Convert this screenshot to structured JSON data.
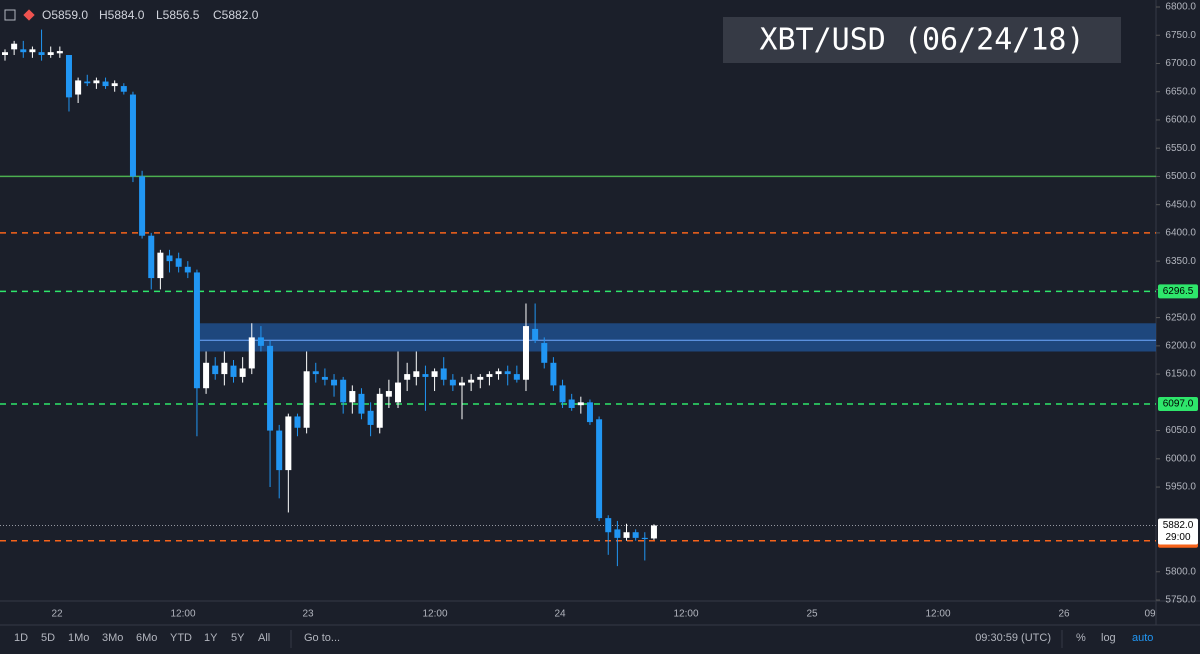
{
  "chart_data": {
    "type": "candlestick",
    "title": "XBT/USD (06/24/18)",
    "ohlc_labels": [
      "O5859.0",
      "H5884.0",
      "L5856.5",
      "C5882.0"
    ],
    "up_color": "#ffffff",
    "down_color": "#2196f3",
    "open": [
      6715,
      6725,
      6725,
      6720,
      6720,
      6715,
      6718,
      6715,
      6645,
      6668,
      6665,
      6668,
      6660,
      6660,
      6645,
      6500,
      6395,
      6320,
      6360,
      6355,
      6340,
      6330,
      6125,
      6165,
      6150,
      6165,
      6145,
      6160,
      6215,
      6200,
      6050,
      5980,
      6075,
      6055,
      6155,
      6145,
      6140,
      6140,
      6100,
      6115,
      6085,
      6055,
      6110,
      6100,
      6140,
      6145,
      6150,
      6145,
      6160,
      6140,
      6130,
      6135,
      6140,
      6145,
      6150,
      6155,
      6150,
      6140,
      6230,
      6205,
      6170,
      6130,
      6105,
      6095,
      6100,
      6070,
      5895,
      5875,
      5860,
      5870,
      5860,
      5859
    ],
    "high": [
      6725,
      6740,
      6740,
      6730,
      6760,
      6730,
      6730,
      6715,
      6675,
      6680,
      6675,
      6675,
      6670,
      6665,
      6650,
      6510,
      6400,
      6370,
      6370,
      6365,
      6350,
      6335,
      6190,
      6180,
      6190,
      6175,
      6180,
      6240,
      6235,
      6210,
      6060,
      6080,
      6080,
      6190,
      6170,
      6160,
      6150,
      6145,
      6130,
      6125,
      6100,
      6125,
      6140,
      6190,
      6170,
      6190,
      6165,
      6160,
      6180,
      6150,
      6145,
      6150,
      6150,
      6155,
      6160,
      6165,
      6165,
      6275,
      6275,
      6215,
      6180,
      6140,
      6115,
      6110,
      6105,
      6075,
      5900,
      5890,
      5885,
      5875,
      5870,
      5884
    ],
    "low": [
      6705,
      6715,
      6710,
      6710,
      6705,
      6710,
      6710,
      6615,
      6630,
      6660,
      6655,
      6655,
      6650,
      6645,
      6490,
      6390,
      6300,
      6300,
      6330,
      6330,
      6320,
      6040,
      6115,
      6140,
      6130,
      6135,
      6135,
      6150,
      6190,
      5950,
      5930,
      5905,
      6040,
      6045,
      6135,
      6130,
      6110,
      6080,
      6080,
      6070,
      6040,
      6045,
      6090,
      6090,
      6120,
      6130,
      6085,
      6120,
      6130,
      6120,
      6070,
      6120,
      6125,
      6130,
      6140,
      6130,
      6135,
      6120,
      6205,
      6160,
      6120,
      6090,
      6085,
      6080,
      6060,
      5890,
      5830,
      5810,
      5855,
      5855,
      5820,
      5856.5
    ],
    "close": [
      6720,
      6735,
      6720,
      6725,
      6715,
      6720,
      6722,
      6640,
      6670,
      6665,
      6670,
      6660,
      6665,
      6650,
      6500,
      6395,
      6320,
      6365,
      6350,
      6340,
      6330,
      6125,
      6170,
      6150,
      6170,
      6145,
      6160,
      6215,
      6200,
      6050,
      5980,
      6075,
      6055,
      6155,
      6150,
      6140,
      6130,
      6100,
      6120,
      6080,
      6060,
      6115,
      6120,
      6135,
      6150,
      6155,
      6145,
      6155,
      6140,
      6130,
      6135,
      6140,
      6145,
      6150,
      6155,
      6150,
      6140,
      6235,
      6210,
      6170,
      6130,
      6100,
      6090,
      6100,
      6065,
      5895,
      5870,
      5860,
      5870,
      5860,
      5858,
      5882
    ],
    "ylim": [
      5750,
      6800
    ],
    "yticks": [
      {
        "value": 5750,
        "label": "5750.0"
      },
      {
        "value": 5800,
        "label": "5800.0"
      },
      {
        "value": 5950,
        "label": "5950.0"
      },
      {
        "value": 6000,
        "label": "6000.0"
      },
      {
        "value": 6050,
        "label": "6050.0"
      },
      {
        "value": 6150,
        "label": "6150.0"
      },
      {
        "value": 6200,
        "label": "6200.0"
      },
      {
        "value": 6250,
        "label": "6250.0"
      },
      {
        "value": 6300,
        "label": "6300.0"
      },
      {
        "value": 6350,
        "label": "6350.0"
      },
      {
        "value": 6400,
        "label": "6400.0"
      },
      {
        "value": 6450,
        "label": "6450.0"
      },
      {
        "value": 6500,
        "label": "6500.0"
      },
      {
        "value": 6550,
        "label": "6550.0"
      },
      {
        "value": 6600,
        "label": "6600.0"
      },
      {
        "value": 6650,
        "label": "6650.0"
      },
      {
        "value": 6700,
        "label": "6700.0"
      },
      {
        "value": 6750,
        "label": "6750.0"
      },
      {
        "value": 6800,
        "label": "6800.0"
      }
    ],
    "xticks": [
      "22",
      "12:00",
      "23",
      "12:00",
      "24",
      "12:00",
      "25",
      "12:00",
      "26",
      "09"
    ],
    "levels": [
      {
        "value": 6500,
        "color": "#4caf50",
        "dash": false
      },
      {
        "value": 6400,
        "color": "#f7631b",
        "dash": true
      },
      {
        "value": 6296.5,
        "label": "6296.5",
        "color": "#2ee66b",
        "dash": true
      },
      {
        "value": 6097,
        "label": "6097.0",
        "color": "#2ee66b",
        "dash": true
      },
      {
        "value": 5855,
        "label": "5855.0",
        "color": "#f7631b",
        "dash": true
      }
    ],
    "last_price": {
      "value": 5882,
      "label": "5882.0",
      "countdown": "29:00"
    },
    "zone": {
      "from": 6190,
      "to": 6240,
      "mid": 6210,
      "color": "#1e4f8c"
    }
  },
  "toolbar": {
    "ranges": [
      "1D",
      "5D",
      "1Mo",
      "3Mo",
      "6Mo",
      "YTD",
      "1Y",
      "5Y",
      "All"
    ],
    "goto": "Go to...",
    "clock": "09:30:59 (UTC)",
    "options": [
      "%",
      "log",
      "auto"
    ]
  }
}
